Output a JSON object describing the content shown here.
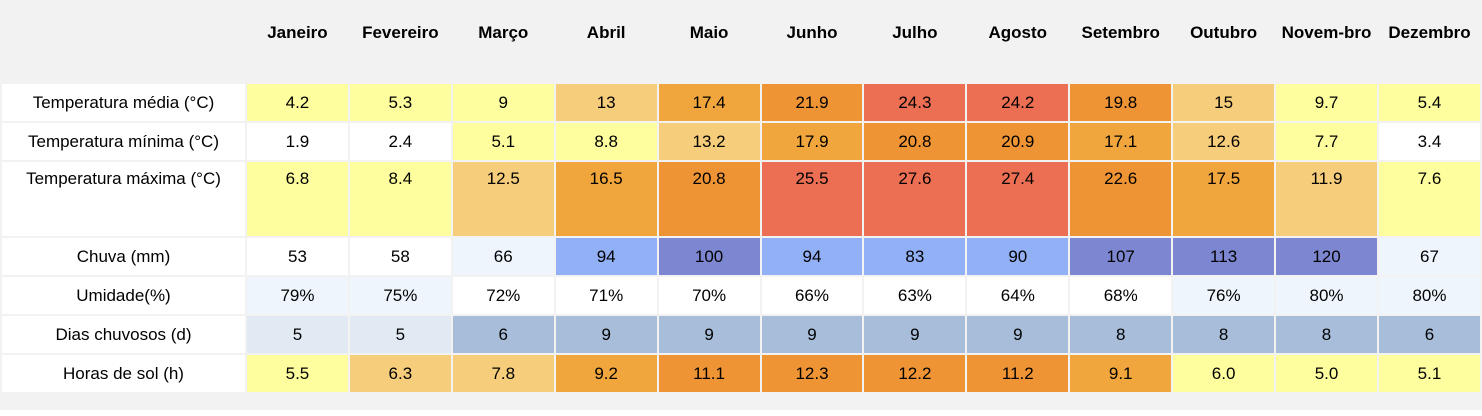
{
  "table": {
    "header": [
      "Janeiro",
      "Fevereiro",
      "Março",
      "Abril",
      "Maio",
      "Junho",
      "Julho",
      "Agosto",
      "Setembro",
      "Outubro",
      "Novem-bro",
      "Dezembro"
    ],
    "rows": [
      {
        "label": "Temperatura média (°C)",
        "cells": [
          "4.2",
          "5.3",
          "9",
          "13",
          "17.4",
          "21.9",
          "24.3",
          "24.2",
          "19.8",
          "15",
          "9.7",
          "5.4"
        ],
        "colors": [
          "#fefe9e",
          "#fefe9e",
          "#fefe9e",
          "#f6cd7a",
          "#f0a63c",
          "#ef9435",
          "#ec6f54",
          "#ec6f54",
          "#ef9435",
          "#f6cd7a",
          "#fefe9e",
          "#fefe9e"
        ]
      },
      {
        "label": "Temperatura mínima (°C)",
        "cells": [
          "1.9",
          "2.4",
          "5.1",
          "8.8",
          "13.2",
          "17.9",
          "20.8",
          "20.9",
          "17.1",
          "12.6",
          "7.7",
          "3.4"
        ],
        "colors": [
          "#ffffff",
          "#ffffff",
          "#fefe9e",
          "#fefe9e",
          "#f6cd7a",
          "#f0a63c",
          "#ef9435",
          "#ef9435",
          "#f0a63c",
          "#f6cd7a",
          "#fefe9e",
          "#ffffff"
        ]
      },
      {
        "label": "Temperatura máxima (°C)",
        "cells": [
          "6.8",
          "8.4",
          "12.5",
          "16.5",
          "20.8",
          "25.5",
          "27.6",
          "27.4",
          "22.6",
          "17.5",
          "11.9",
          "7.6"
        ],
        "colors": [
          "#fefe9e",
          "#fefe9e",
          "#f6cd7a",
          "#f0a63c",
          "#ef9435",
          "#ec6f54",
          "#ec6f54",
          "#ec6f54",
          "#ef9435",
          "#f0a63c",
          "#f6cd7a",
          "#fefe9e"
        ]
      },
      {
        "label": "Chuva (mm)",
        "cells": [
          "53",
          "58",
          "66",
          "94",
          "100",
          "94",
          "83",
          "90",
          "107",
          "113",
          "120",
          "67"
        ],
        "colors": [
          "#ffffff",
          "#ffffff",
          "#eef5fd",
          "#92b0f5",
          "#7d87d1",
          "#92b0f5",
          "#92b0f5",
          "#92b0f5",
          "#7d87d1",
          "#7d87d1",
          "#7d87d1",
          "#eef5fd"
        ]
      },
      {
        "label": "Umidade(%)",
        "cells": [
          "79%",
          "75%",
          "72%",
          "71%",
          "70%",
          "66%",
          "63%",
          "64%",
          "68%",
          "76%",
          "80%",
          "80%"
        ],
        "colors": [
          "#eef5fd",
          "#eef5fd",
          "#ffffff",
          "#ffffff",
          "#ffffff",
          "#ffffff",
          "#ffffff",
          "#ffffff",
          "#ffffff",
          "#eef5fd",
          "#eef5fd",
          "#eef5fd"
        ]
      },
      {
        "label": "Dias chuvosos (d)",
        "cells": [
          "5",
          "5",
          "6",
          "9",
          "9",
          "9",
          "9",
          "9",
          "8",
          "8",
          "8",
          "6"
        ],
        "colors": [
          "#e1eaf3",
          "#e1eaf3",
          "#a7bdd9",
          "#a7bdd9",
          "#a7bdd9",
          "#a7bdd9",
          "#a7bdd9",
          "#a7bdd9",
          "#a7bdd9",
          "#a7bdd9",
          "#a7bdd9",
          "#a7bdd9"
        ]
      },
      {
        "label": "Horas de sol (h)",
        "cells": [
          "5.5",
          "6.3",
          "7.8",
          "9.2",
          "11.1",
          "12.3",
          "12.2",
          "11.2",
          "9.1",
          "6.0",
          "5.0",
          "5.1"
        ],
        "colors": [
          "#fefe9e",
          "#f6cd7a",
          "#f6cd7a",
          "#f0a63c",
          "#ef9435",
          "#ef9435",
          "#ef9435",
          "#ef9435",
          "#f0a63c",
          "#fefe9e",
          "#fefe9e",
          "#fefe9e"
        ]
      }
    ]
  }
}
